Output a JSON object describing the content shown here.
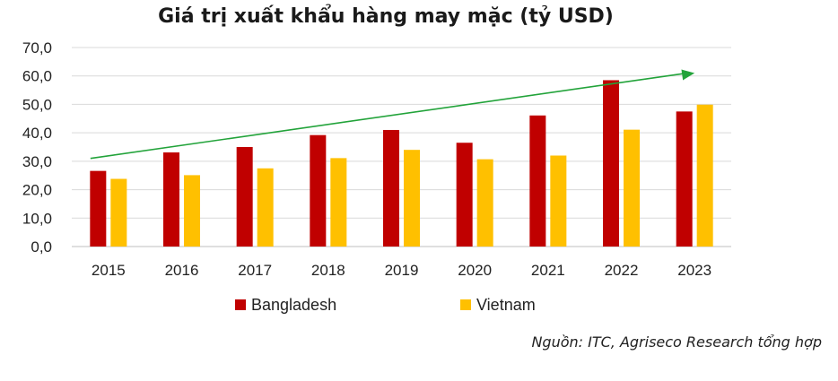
{
  "chart_data": {
    "type": "bar",
    "title": "Giá trị xuất khẩu hàng may mặc (tỷ USD)",
    "categories": [
      "2015",
      "2016",
      "2017",
      "2018",
      "2019",
      "2020",
      "2021",
      "2022",
      "2023"
    ],
    "series": [
      {
        "name": "Bangladesh",
        "color": "#c00000",
        "values": [
          26.6,
          33.1,
          35.0,
          39.2,
          41.0,
          36.5,
          46.1,
          58.5,
          47.5
        ]
      },
      {
        "name": "Vietnam",
        "color": "#ffc000",
        "values": [
          23.8,
          25.1,
          27.5,
          31.1,
          34.0,
          30.7,
          32.0,
          41.1,
          49.9
        ]
      }
    ],
    "ylim": [
      0,
      70
    ],
    "yticks": [
      "0,0",
      "10,0",
      "20,0",
      "30,0",
      "40,0",
      "50,0",
      "60,0",
      "70,0"
    ],
    "grid": true,
    "legend_position": "bottom",
    "annotation": {
      "type": "trend-arrow",
      "color": "#22a33a",
      "start": {
        "x": "2015",
        "y": 31.0
      },
      "end": {
        "x": "2023",
        "y": 61.0
      }
    }
  },
  "source_note": "Nguồn: ITC, Agriseco Research tổng hợp"
}
